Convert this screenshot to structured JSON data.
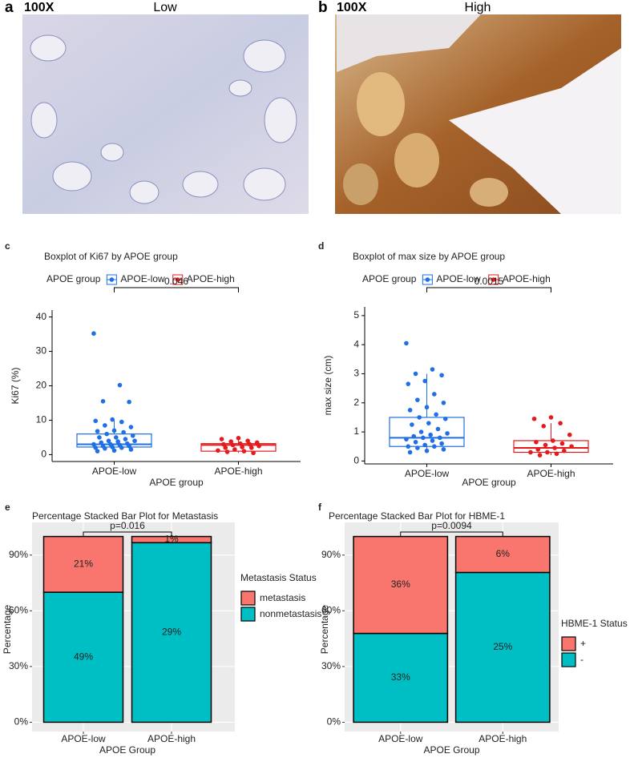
{
  "images": [
    {
      "letter": "a",
      "magnification": "100X",
      "label": "Low"
    },
    {
      "letter": "b",
      "magnification": "100X",
      "label": "High"
    }
  ],
  "chart_data": [
    {
      "type": "box",
      "panel_letter": "c",
      "title": "Boxplot of Ki67 by APOE group",
      "legend_title": "APOE group",
      "x_label": "APOE group",
      "y_label": "Ki67 (%)",
      "annotation": "0.046",
      "categories": [
        "APOE-low",
        "APOE-high"
      ],
      "ylim": [
        -2,
        42
      ],
      "yticks": [
        0,
        10,
        20,
        30,
        40
      ],
      "series": [
        {
          "name": "APOE-low",
          "color": "#1f6fe5",
          "stats": {
            "whisker_low": 1,
            "q1": 2.2,
            "median": 3,
            "q3": 6,
            "whisker_high": 10
          },
          "points": [
            35.2,
            20.2,
            15.5,
            15.3,
            10.2,
            9.8,
            9.5,
            8.5,
            8,
            7,
            6.8,
            6.5,
            6,
            5.5,
            5,
            5,
            4.5,
            4,
            4,
            3.8,
            3.5,
            3.2,
            3,
            3,
            2.8,
            2.5,
            2.5,
            2.2,
            2,
            2,
            1.8,
            1.5,
            1.2,
            1
          ]
        },
        {
          "name": "APOE-high",
          "color": "#e41a1c",
          "stats": {
            "whisker_low": 0.5,
            "q1": 1,
            "median": 2.8,
            "q3": 3.2,
            "whisker_high": 4.8
          },
          "points": [
            4.8,
            4.5,
            4,
            3.8,
            3.5,
            3.2,
            3,
            3,
            2.8,
            2.5,
            2.2,
            2,
            2,
            1.5,
            1.2,
            1,
            0.8,
            0.5
          ]
        }
      ]
    },
    {
      "type": "box",
      "panel_letter": "d",
      "title": "Boxplot of max size by APOE group",
      "legend_title": "APOE group",
      "x_label": "APOE group",
      "y_label": "max size (cm)",
      "annotation": "0.0015",
      "categories": [
        "APOE-low",
        "APOE-high"
      ],
      "ylim": [
        -0.1,
        5.3
      ],
      "yticks": [
        0,
        1,
        2,
        3,
        4,
        5
      ],
      "series": [
        {
          "name": "APOE-low",
          "color": "#1f6fe5",
          "stats": {
            "whisker_low": 0.3,
            "q1": 0.5,
            "median": 0.8,
            "q3": 1.5,
            "whisker_high": 3.0
          },
          "points": [
            4.05,
            3.15,
            3.0,
            2.95,
            2.75,
            2.65,
            2.3,
            2.1,
            2.0,
            1.85,
            1.75,
            1.6,
            1.5,
            1.45,
            1.3,
            1.25,
            1.1,
            1.0,
            0.95,
            0.9,
            0.85,
            0.8,
            0.8,
            0.75,
            0.7,
            0.65,
            0.6,
            0.55,
            0.5,
            0.5,
            0.45,
            0.4,
            0.35,
            0.3
          ]
        },
        {
          "name": "APOE-high",
          "color": "#e41a1c",
          "stats": {
            "whisker_low": 0.2,
            "q1": 0.3,
            "median": 0.45,
            "q3": 0.7,
            "whisker_high": 1.3
          },
          "points": [
            1.5,
            1.45,
            1.3,
            1.2,
            0.9,
            0.7,
            0.65,
            0.6,
            0.55,
            0.5,
            0.45,
            0.4,
            0.35,
            0.3,
            0.3,
            0.25,
            0.2
          ]
        }
      ]
    },
    {
      "type": "bar",
      "stacked": "percent",
      "panel_letter": "e",
      "title": "Percentage Stacked Bar Plot for Metastasis",
      "legend_title": "Metastasis Status",
      "x_label": "APOE Group",
      "y_label": "Percentage",
      "annotation": "p=0.016",
      "categories": [
        "APOE-low",
        "APOE-high"
      ],
      "ylim": [
        -5,
        105
      ],
      "yticks": [
        {
          "value": 0,
          "label": "0%"
        },
        {
          "value": 30,
          "label": "30%"
        },
        {
          "value": 60,
          "label": "60%"
        },
        {
          "value": 90,
          "label": "90%"
        }
      ],
      "series": [
        {
          "name": "metastasis",
          "color": "#F8766D",
          "values": [
            21,
            1
          ],
          "value_labels": [
            "21%",
            "1%"
          ]
        },
        {
          "name": "nonmetastasis",
          "color": "#00BFC4",
          "values": [
            49,
            29
          ],
          "value_labels": [
            "49%",
            "29%"
          ]
        }
      ]
    },
    {
      "type": "bar",
      "stacked": "percent",
      "panel_letter": "f",
      "title": "Percentage Stacked Bar Plot for HBME-1",
      "legend_title": "HBME-1 Status",
      "x_label": "APOE Group",
      "y_label": "Percentage",
      "annotation": "p=0.0094",
      "categories": [
        "APOE-low",
        "APOE-high"
      ],
      "ylim": [
        -5,
        105
      ],
      "yticks": [
        {
          "value": 0,
          "label": "0%"
        },
        {
          "value": 30,
          "label": "30%"
        },
        {
          "value": 60,
          "label": "60%"
        },
        {
          "value": 90,
          "label": "90%"
        }
      ],
      "series": [
        {
          "name": "+",
          "color": "#F8766D",
          "values": [
            36,
            6
          ],
          "value_labels": [
            "36%",
            "6%"
          ]
        },
        {
          "name": "-",
          "color": "#00BFC4",
          "values": [
            33,
            25
          ],
          "value_labels": [
            "33%",
            "25%"
          ]
        }
      ]
    }
  ]
}
